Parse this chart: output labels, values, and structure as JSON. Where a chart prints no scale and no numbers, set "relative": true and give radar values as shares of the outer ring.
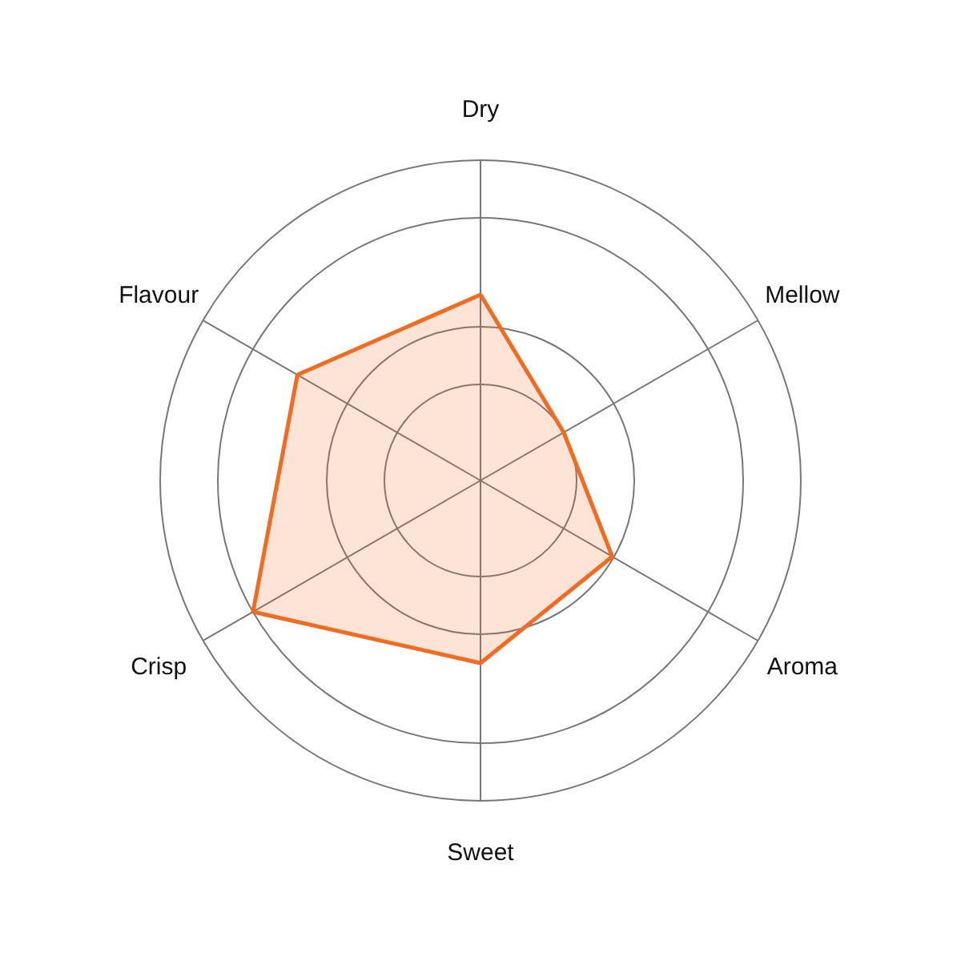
{
  "chart_data": {
    "type": "radar",
    "relative": true,
    "grid": true,
    "categories": [
      "Dry",
      "Mellow",
      "Aroma",
      "Sweet",
      "Crisp",
      "Flavour"
    ],
    "series": [
      {
        "color": "#f26b21",
        "values": [
          0.58,
          0.3,
          0.475,
          0.57,
          0.82,
          0.66
        ]
      }
    ]
  }
}
